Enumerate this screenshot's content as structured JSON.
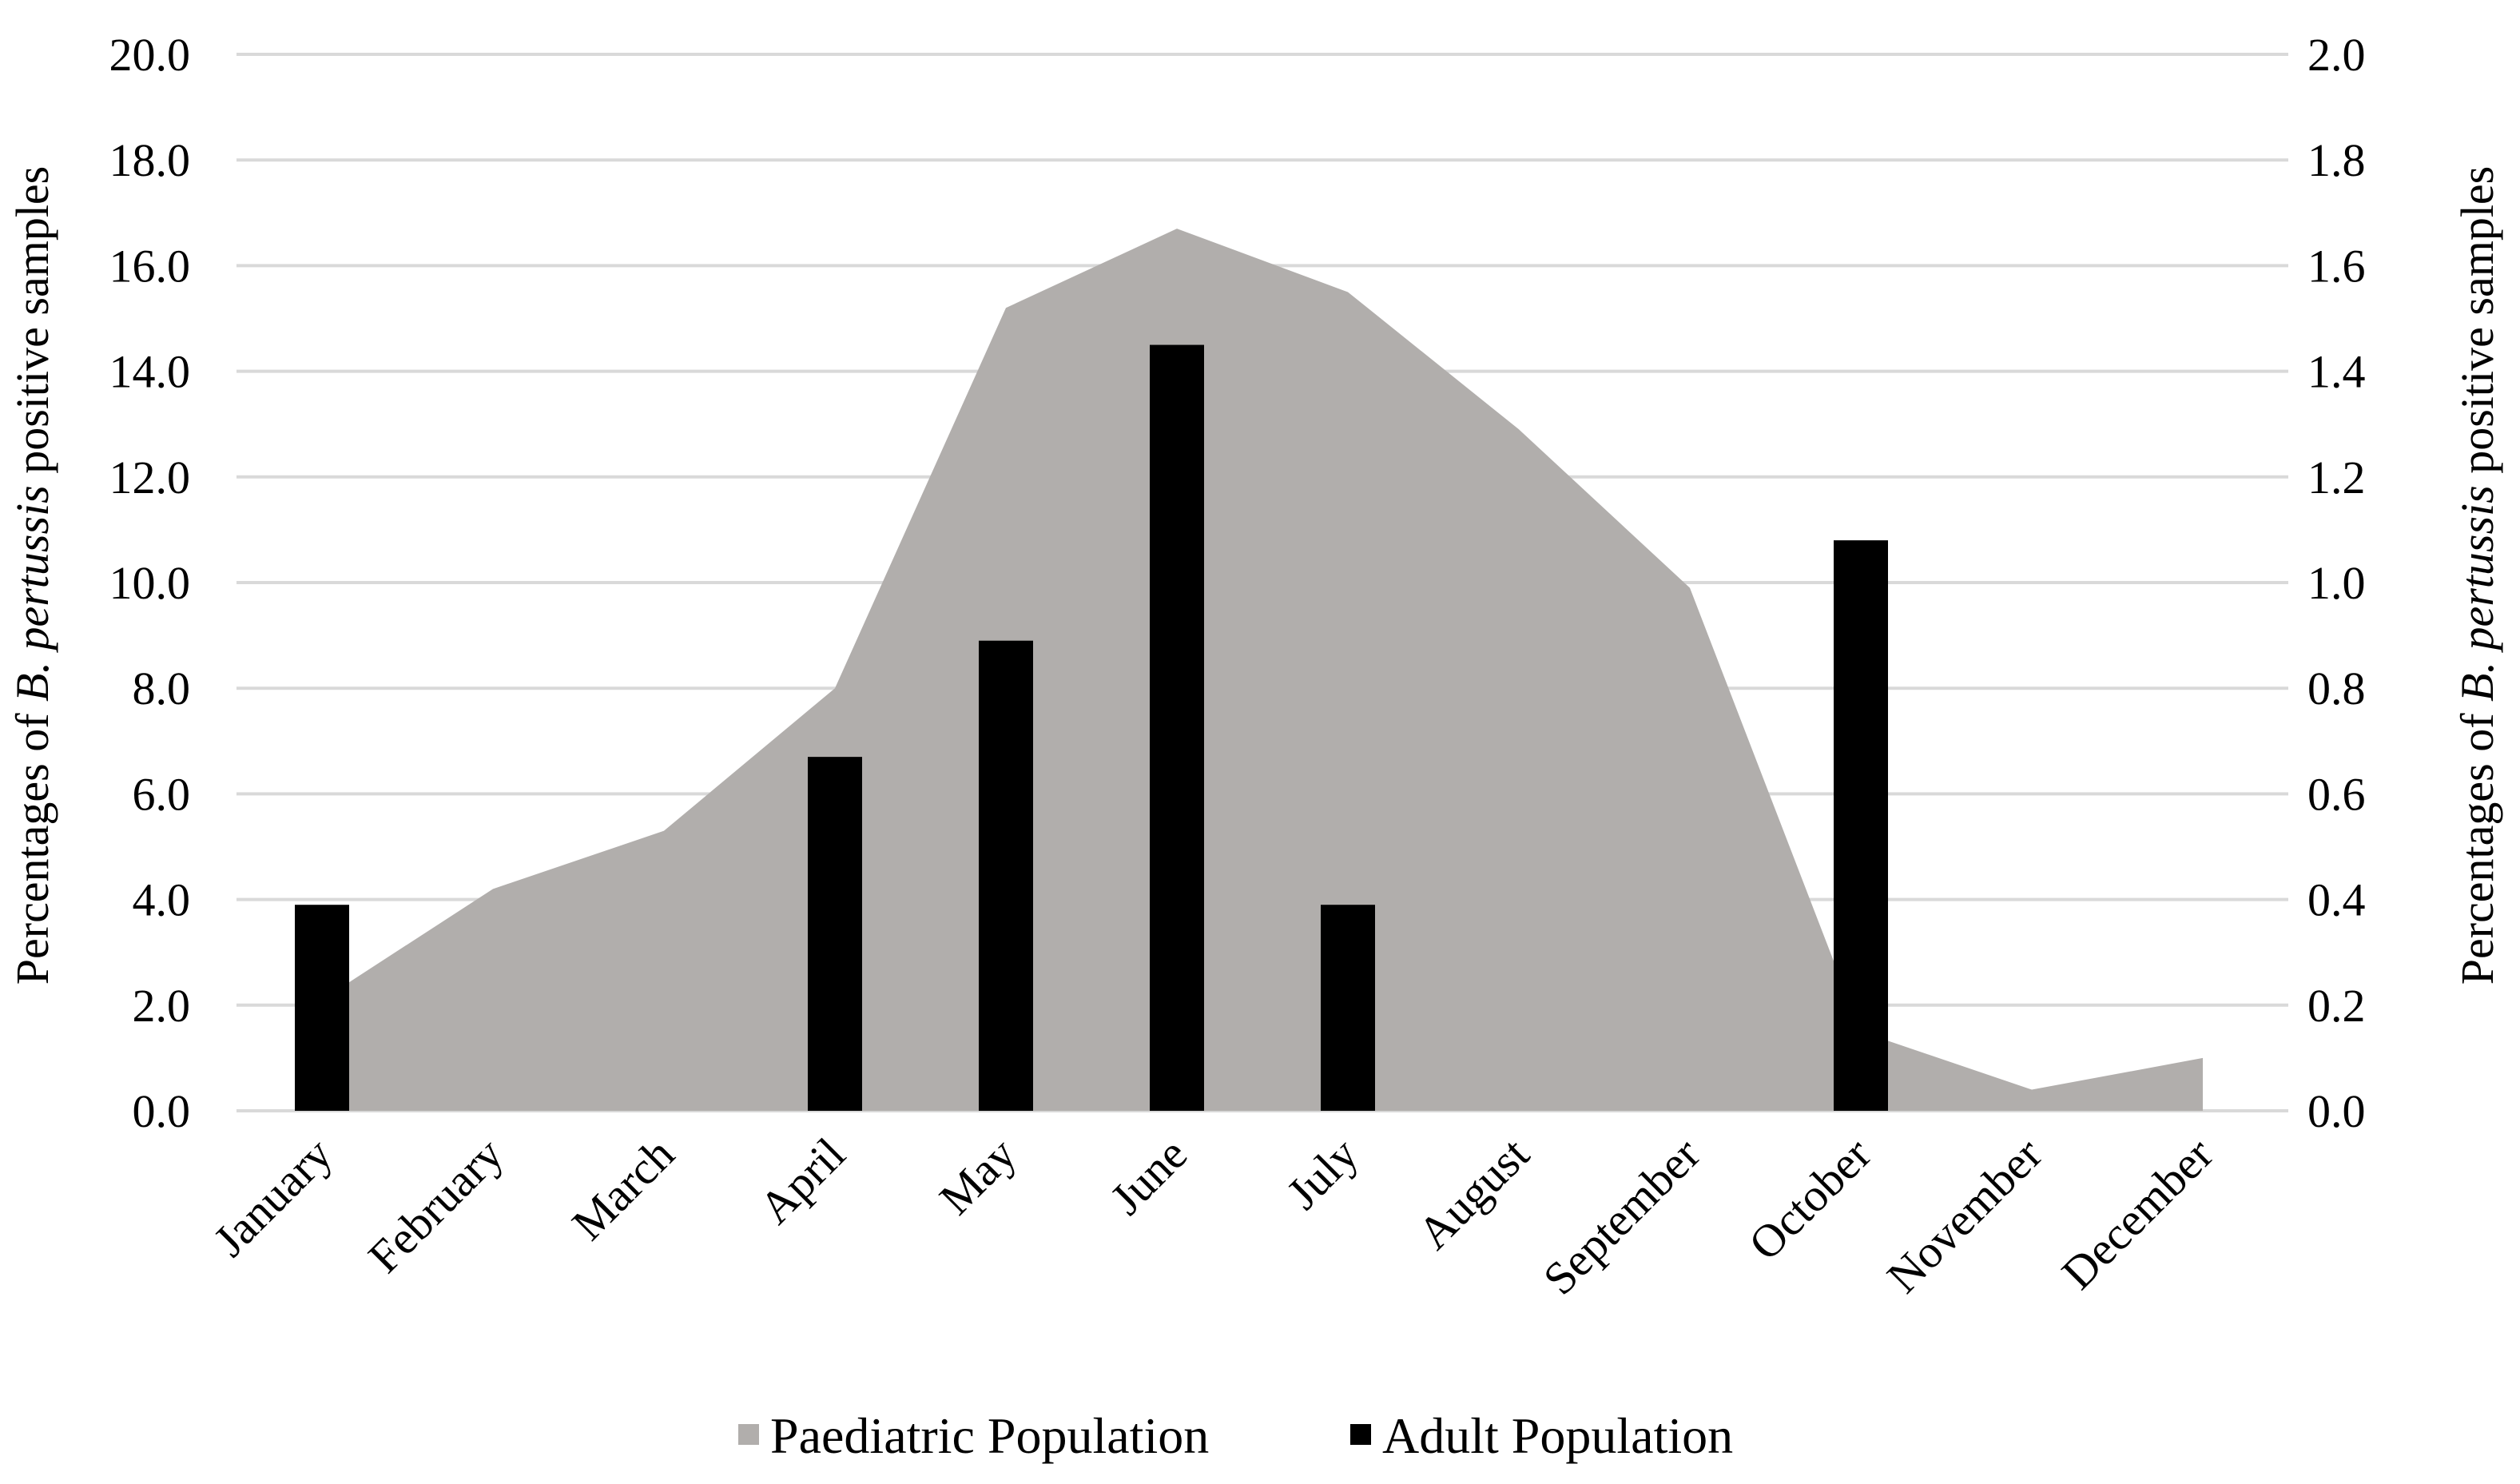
{
  "chart_data": {
    "type": "bar",
    "title": "",
    "categories": [
      "January",
      "February",
      "March",
      "April",
      "May",
      "June",
      "July",
      "August",
      "September",
      "October",
      "November",
      "December"
    ],
    "series": [
      {
        "name": "Paediatric Population",
        "chart_type": "area",
        "axis": "left",
        "color": "#b1aeac",
        "values": [
          2.1,
          4.2,
          5.3,
          8.0,
          15.2,
          16.7,
          15.5,
          12.9,
          9.9,
          1.5,
          0.4,
          1.0
        ]
      },
      {
        "name": "Adult Population",
        "chart_type": "bar",
        "axis": "right",
        "color": "#000000",
        "values": [
          0.39,
          0.0,
          0.0,
          0.67,
          0.89,
          1.45,
          0.39,
          0.0,
          0.0,
          1.08,
          0.0,
          0.0
        ]
      }
    ],
    "y_left": {
      "ylim": [
        0,
        20
      ],
      "ticks": [
        "0.0",
        "2.0",
        "4.0",
        "6.0",
        "8.0",
        "10.0",
        "12.0",
        "14.0",
        "16.0",
        "18.0",
        "20.0"
      ]
    },
    "y_right": {
      "ylim": [
        0,
        2
      ],
      "ticks": [
        "0.0",
        "0.2",
        "0.4",
        "0.6",
        "0.8",
        "1.0",
        "1.2",
        "1.4",
        "1.6",
        "1.8",
        "2.0"
      ]
    },
    "ylabel_left": {
      "prefix": "Percentages  of ",
      "italic": "B. pertussis",
      "suffix": " positive  samples"
    },
    "ylabel_right": {
      "prefix": "Percentages  of ",
      "italic": "B. pertussis",
      "suffix": " positive  samples"
    },
    "xlabel": "",
    "grid": true,
    "legend_position": "bottom"
  }
}
